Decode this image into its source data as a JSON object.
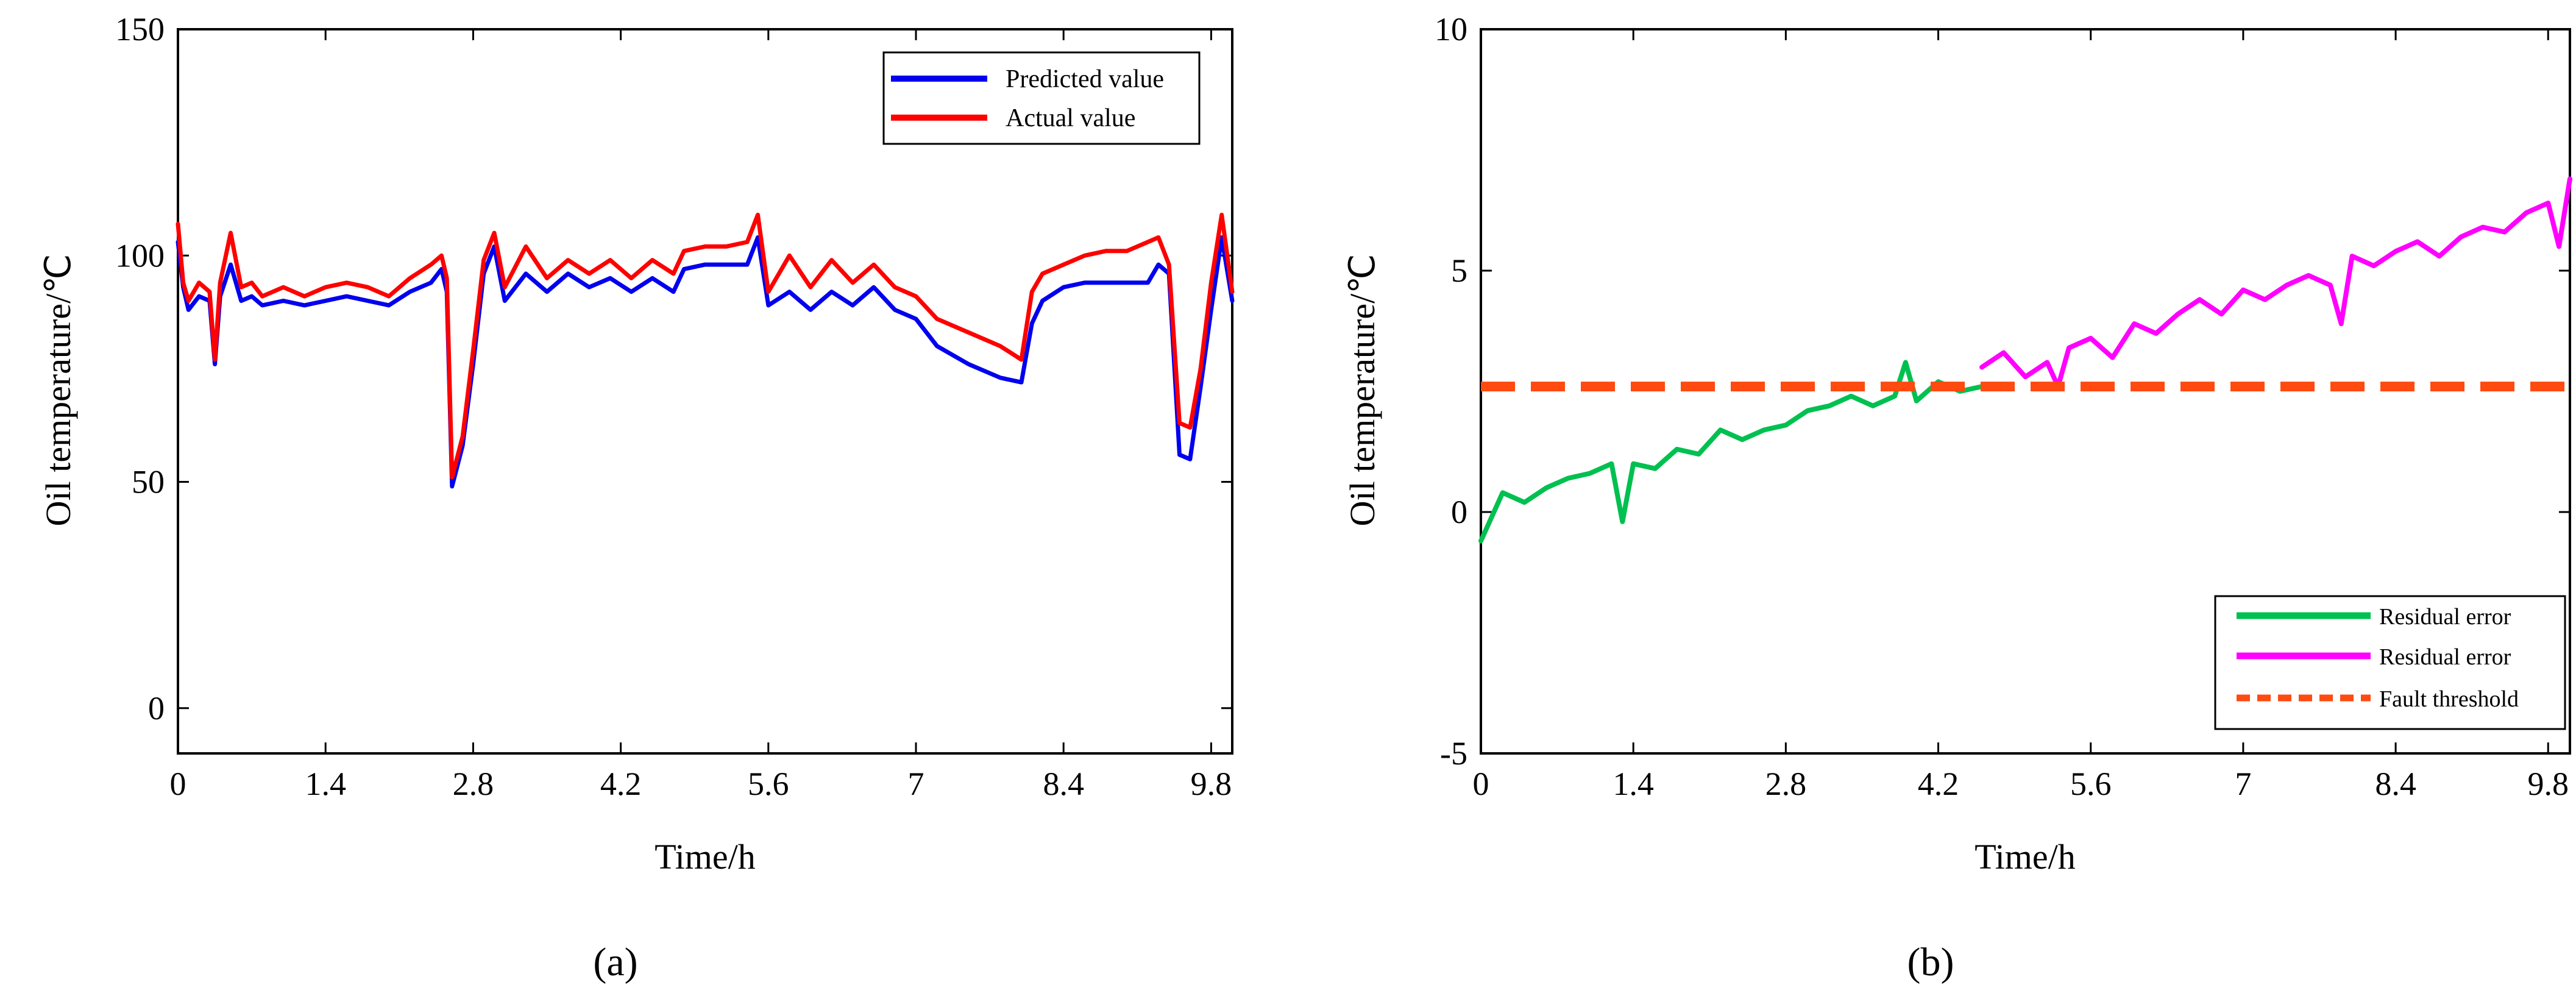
{
  "chart_data": [
    {
      "type": "line",
      "panel_label": "(a)",
      "xlabel": "Time/h",
      "ylabel": "Oil temperature/℃",
      "xlim": [
        0,
        10
      ],
      "ylim": [
        -10,
        150
      ],
      "xticks": [
        0,
        1.4,
        2.8,
        4.2,
        5.6,
        7,
        8.4,
        9.8
      ],
      "xtick_labels": [
        "0",
        "1.4",
        "2.8",
        "4.2",
        "5.6",
        "7",
        "8.4",
        "9.8"
      ],
      "yticks": [
        0,
        50,
        100,
        150
      ],
      "ytick_labels": [
        "0",
        "50",
        "100",
        "150"
      ],
      "legend_position": "top-right",
      "series": [
        {
          "name": "Predicted value",
          "color": "#0000ee",
          "x": [
            0,
            0.05,
            0.1,
            0.2,
            0.3,
            0.35,
            0.4,
            0.5,
            0.6,
            0.7,
            0.8,
            1.0,
            1.2,
            1.4,
            1.6,
            1.8,
            2.0,
            2.2,
            2.4,
            2.5,
            2.55,
            2.6,
            2.7,
            2.8,
            2.9,
            3.0,
            3.1,
            3.3,
            3.5,
            3.7,
            3.9,
            4.1,
            4.3,
            4.5,
            4.7,
            4.8,
            5.0,
            5.2,
            5.4,
            5.5,
            5.6,
            5.8,
            6.0,
            6.2,
            6.4,
            6.6,
            6.8,
            7.0,
            7.2,
            7.5,
            7.8,
            8.0,
            8.1,
            8.2,
            8.4,
            8.6,
            8.8,
            9.0,
            9.2,
            9.3,
            9.4,
            9.5,
            9.6,
            9.7,
            9.8,
            9.9,
            10.0
          ],
          "y": [
            103,
            93,
            88,
            91,
            90,
            76,
            91,
            98,
            90,
            91,
            89,
            90,
            89,
            90,
            91,
            90,
            89,
            92,
            94,
            97,
            92,
            49,
            58,
            76,
            96,
            102,
            90,
            96,
            92,
            96,
            93,
            95,
            92,
            95,
            92,
            97,
            98,
            98,
            98,
            104,
            89,
            92,
            88,
            92,
            89,
            93,
            88,
            86,
            80,
            76,
            73,
            72,
            85,
            90,
            93,
            94,
            94,
            94,
            94,
            98,
            96,
            56,
            55,
            71,
            88,
            104,
            90
          ]
        },
        {
          "name": "Actual value",
          "color": "#ff0000",
          "x": [
            0,
            0.05,
            0.1,
            0.2,
            0.3,
            0.35,
            0.4,
            0.5,
            0.6,
            0.7,
            0.8,
            1.0,
            1.2,
            1.4,
            1.6,
            1.8,
            2.0,
            2.2,
            2.4,
            2.5,
            2.55,
            2.6,
            2.7,
            2.8,
            2.9,
            3.0,
            3.1,
            3.3,
            3.5,
            3.7,
            3.9,
            4.1,
            4.3,
            4.5,
            4.7,
            4.8,
            5.0,
            5.2,
            5.4,
            5.5,
            5.6,
            5.8,
            6.0,
            6.2,
            6.4,
            6.6,
            6.8,
            7.0,
            7.2,
            7.5,
            7.8,
            8.0,
            8.1,
            8.2,
            8.4,
            8.6,
            8.8,
            9.0,
            9.2,
            9.3,
            9.4,
            9.5,
            9.6,
            9.7,
            9.8,
            9.9,
            10.0
          ],
          "y": [
            107,
            94,
            90,
            94,
            92,
            77,
            94,
            105,
            93,
            94,
            91,
            93,
            91,
            93,
            94,
            93,
            91,
            95,
            98,
            100,
            95,
            51,
            60,
            79,
            99,
            105,
            93,
            102,
            95,
            99,
            96,
            99,
            95,
            99,
            96,
            101,
            102,
            102,
            103,
            109,
            92,
            100,
            93,
            99,
            94,
            98,
            93,
            91,
            86,
            83,
            80,
            77,
            92,
            96,
            98,
            100,
            101,
            101,
            103,
            104,
            98,
            63,
            62,
            75,
            94,
            109,
            92
          ]
        }
      ]
    },
    {
      "type": "line",
      "panel_label": "(b)",
      "xlabel": "Time/h",
      "ylabel": "Oil temperature/℃",
      "xlim": [
        0,
        10
      ],
      "ylim": [
        -5,
        10
      ],
      "xticks": [
        0,
        1.4,
        2.8,
        4.2,
        5.6,
        7,
        8.4,
        9.8
      ],
      "xtick_labels": [
        "0",
        "1.4",
        "2.8",
        "4.2",
        "5.6",
        "7",
        "8.4",
        "9.8"
      ],
      "yticks": [
        -5,
        0,
        5,
        10
      ],
      "ytick_labels": [
        "-5",
        "0",
        "5",
        "10"
      ],
      "legend_position": "bottom-right",
      "series": [
        {
          "name": "Residual error",
          "color": "#00c050",
          "x": [
            0,
            0.2,
            0.4,
            0.6,
            0.8,
            1.0,
            1.2,
            1.3,
            1.4,
            1.6,
            1.8,
            2.0,
            2.2,
            2.4,
            2.6,
            2.8,
            3.0,
            3.2,
            3.4,
            3.6,
            3.8,
            3.9,
            4.0,
            4.2,
            4.4,
            4.6
          ],
          "y": [
            -0.6,
            0.4,
            0.2,
            0.5,
            0.7,
            0.8,
            1.0,
            -0.2,
            1.0,
            0.9,
            1.3,
            1.2,
            1.7,
            1.5,
            1.7,
            1.8,
            2.1,
            2.2,
            2.4,
            2.2,
            2.4,
            3.1,
            2.3,
            2.7,
            2.5,
            2.6
          ]
        },
        {
          "name": "Residual error",
          "color": "#ff00ff",
          "x": [
            4.6,
            4.8,
            5.0,
            5.2,
            5.3,
            5.4,
            5.6,
            5.8,
            6.0,
            6.2,
            6.4,
            6.6,
            6.8,
            7.0,
            7.2,
            7.4,
            7.6,
            7.8,
            7.9,
            8.0,
            8.2,
            8.4,
            8.6,
            8.8,
            9.0,
            9.2,
            9.4,
            9.6,
            9.8,
            9.9,
            10.0
          ],
          "y": [
            3.0,
            3.3,
            2.8,
            3.1,
            2.6,
            3.4,
            3.6,
            3.2,
            3.9,
            3.7,
            4.1,
            4.4,
            4.1,
            4.6,
            4.4,
            4.7,
            4.9,
            4.7,
            3.9,
            5.3,
            5.1,
            5.4,
            5.6,
            5.3,
            5.7,
            5.9,
            5.8,
            6.2,
            6.4,
            5.5,
            6.9
          ]
        },
        {
          "name": "Fault threshold",
          "color": "#ff4a10",
          "style": "dashed",
          "value": 2.6
        }
      ]
    }
  ]
}
